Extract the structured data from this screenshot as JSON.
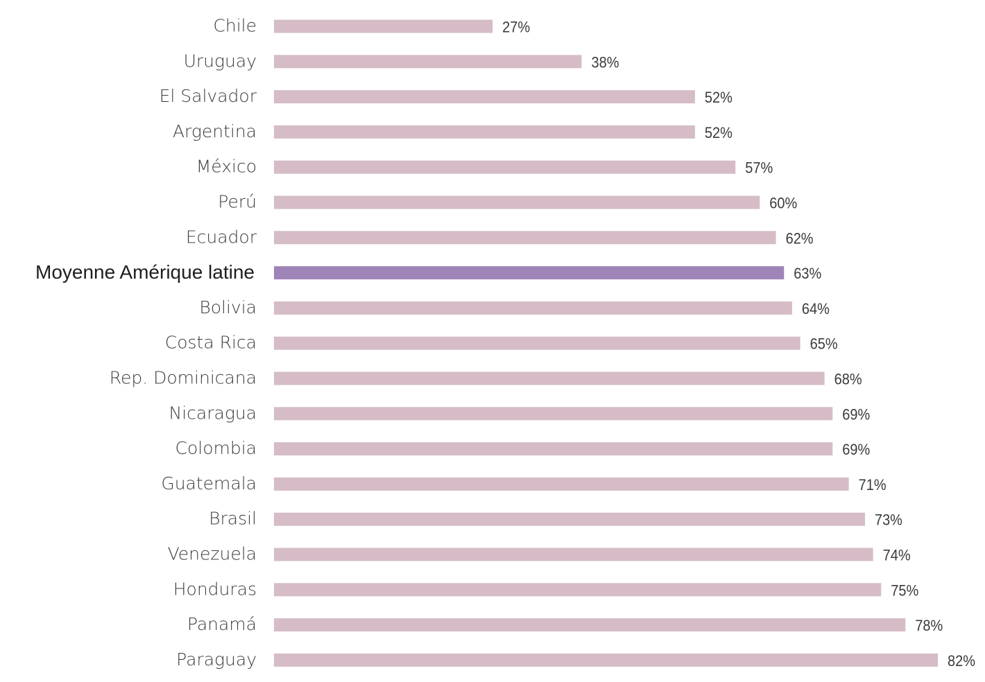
{
  "chart_data": {
    "type": "bar",
    "orientation": "horizontal",
    "categories": [
      "Chile",
      "Uruguay",
      "El Salvador",
      "Argentina",
      "México",
      "Perú",
      "Ecuador",
      "Moyenne Amérique latine",
      "Bolivia",
      "Costa Rica",
      "Rep. Dominicana",
      "Nicaragua",
      "Colombia",
      "Guatemala",
      "Brasil",
      "Venezuela",
      "Honduras",
      "Panamá",
      "Paraguay"
    ],
    "values": [
      27,
      38,
      52,
      52,
      57,
      60,
      62,
      63,
      64,
      65,
      68,
      69,
      69,
      71,
      73,
      74,
      75,
      78,
      82
    ],
    "value_labels": [
      "27%",
      "38%",
      "52%",
      "52%",
      "57%",
      "60%",
      "62%",
      "63%",
      "64%",
      "65%",
      "68%",
      "69%",
      "69%",
      "71%",
      "73%",
      "74%",
      "75%",
      "78%",
      "82%"
    ],
    "highlight_category": "Moyenne Amérique latine",
    "xlim": [
      0,
      82
    ],
    "grid": false,
    "legend": "none",
    "colors": {
      "bar": "#d5bcc6",
      "highlight_bar": "#9f84b8"
    }
  }
}
